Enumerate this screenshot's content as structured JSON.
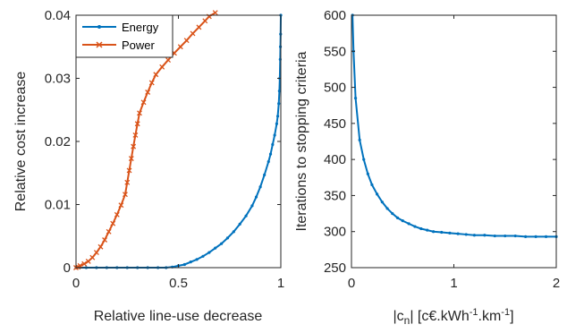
{
  "chart_data": [
    {
      "type": "line",
      "xlabel": "Relative line-use decrease",
      "ylabel": "Relative cost increase",
      "xlim": [
        0,
        1
      ],
      "ylim": [
        0,
        0.04
      ],
      "xticks": [
        0,
        0.5,
        1
      ],
      "xtick_labels": [
        "0",
        "0.5",
        "1"
      ],
      "yticks": [
        0,
        0.01,
        0.02,
        0.03,
        0.04
      ],
      "ytick_labels": [
        "0",
        "0.01",
        "0.02",
        "0.03",
        "0.04"
      ],
      "grid": false,
      "legend": "top-left",
      "series": [
        {
          "name": "Energy",
          "color": "#0072BD",
          "marker": "dot",
          "points": [
            [
              0,
              0
            ],
            [
              0.05,
              0
            ],
            [
              0.1,
              0
            ],
            [
              0.15,
              0
            ],
            [
              0.2,
              0
            ],
            [
              0.25,
              0
            ],
            [
              0.3,
              0
            ],
            [
              0.35,
              0
            ],
            [
              0.4,
              0
            ],
            [
              0.44,
              0
            ],
            [
              0.47,
              0.0001
            ],
            [
              0.5,
              0.0003
            ],
            [
              0.53,
              0.0005
            ],
            [
              0.56,
              0.0009
            ],
            [
              0.59,
              0.0013
            ],
            [
              0.62,
              0.0018
            ],
            [
              0.65,
              0.0024
            ],
            [
              0.68,
              0.0031
            ],
            [
              0.71,
              0.0038
            ],
            [
              0.74,
              0.0047
            ],
            [
              0.77,
              0.0057
            ],
            [
              0.8,
              0.0069
            ],
            [
              0.83,
              0.0082
            ],
            [
              0.86,
              0.0098
            ],
            [
              0.88,
              0.0112
            ],
            [
              0.9,
              0.0128
            ],
            [
              0.92,
              0.0147
            ],
            [
              0.94,
              0.0168
            ],
            [
              0.95,
              0.018
            ],
            [
              0.96,
              0.0195
            ],
            [
              0.97,
              0.021
            ],
            [
              0.98,
              0.0228
            ],
            [
              0.985,
              0.024
            ],
            [
              0.99,
              0.026
            ],
            [
              0.993,
              0.028
            ],
            [
              0.995,
              0.03
            ],
            [
              0.997,
              0.033
            ],
            [
              0.998,
              0.035
            ],
            [
              0.999,
              0.037
            ],
            [
              1.0,
              0.04
            ]
          ]
        },
        {
          "name": "Power",
          "color": "#D95319",
          "marker": "x",
          "points": [
            [
              0,
              0
            ],
            [
              0.01,
              0.0001
            ],
            [
              0.02,
              0.0003
            ],
            [
              0.04,
              0.0006
            ],
            [
              0.06,
              0.001
            ],
            [
              0.08,
              0.0016
            ],
            [
              0.1,
              0.0024
            ],
            [
              0.12,
              0.0033
            ],
            [
              0.14,
              0.0044
            ],
            [
              0.16,
              0.0057
            ],
            [
              0.18,
              0.007
            ],
            [
              0.2,
              0.0084
            ],
            [
              0.22,
              0.0099
            ],
            [
              0.24,
              0.0116
            ],
            [
              0.25,
              0.0135
            ],
            [
              0.26,
              0.0154
            ],
            [
              0.27,
              0.0173
            ],
            [
              0.28,
              0.0192
            ],
            [
              0.29,
              0.021
            ],
            [
              0.3,
              0.0228
            ],
            [
              0.31,
              0.0245
            ],
            [
              0.33,
              0.0262
            ],
            [
              0.35,
              0.0278
            ],
            [
              0.37,
              0.0293
            ],
            [
              0.39,
              0.0306
            ],
            [
              0.42,
              0.0318
            ],
            [
              0.45,
              0.0329
            ],
            [
              0.48,
              0.034
            ],
            [
              0.51,
              0.035
            ],
            [
              0.54,
              0.036
            ],
            [
              0.57,
              0.0371
            ],
            [
              0.6,
              0.0381
            ],
            [
              0.63,
              0.0391
            ],
            [
              0.65,
              0.0398
            ],
            [
              0.68,
              0.0404
            ]
          ]
        }
      ]
    },
    {
      "type": "line",
      "xlabel": "|c_n| [c€.kWh^-1.km^-1]",
      "xlabel_parts": [
        "|c",
        "n",
        "| [c€.kWh",
        "-1",
        ".km",
        "-1",
        "]"
      ],
      "ylabel": "Iterations to stopping criteria",
      "xlim": [
        0,
        2
      ],
      "ylim": [
        250,
        600
      ],
      "xticks": [
        0,
        1,
        2
      ],
      "xtick_labels": [
        "0",
        "1",
        "2"
      ],
      "yticks": [
        250,
        300,
        350,
        400,
        450,
        500,
        550,
        600
      ],
      "ytick_labels": [
        "250",
        "300",
        "350",
        "400",
        "450",
        "500",
        "550",
        "600"
      ],
      "grid": false,
      "series": [
        {
          "color": "#0072BD",
          "marker": "dot",
          "points": [
            [
              0.01,
              600
            ],
            [
              0.02,
              550
            ],
            [
              0.04,
              485
            ],
            [
              0.08,
              427
            ],
            [
              0.12,
              400
            ],
            [
              0.16,
              380
            ],
            [
              0.2,
              365
            ],
            [
              0.25,
              352
            ],
            [
              0.3,
              341
            ],
            [
              0.35,
              332
            ],
            [
              0.4,
              325
            ],
            [
              0.45,
              319
            ],
            [
              0.5,
              315
            ],
            [
              0.56,
              311
            ],
            [
              0.62,
              307
            ],
            [
              0.68,
              304
            ],
            [
              0.74,
              302
            ],
            [
              0.8,
              300
            ],
            [
              0.88,
              299
            ],
            [
              0.96,
              298
            ],
            [
              1.04,
              297
            ],
            [
              1.12,
              296
            ],
            [
              1.2,
              295
            ],
            [
              1.3,
              295
            ],
            [
              1.4,
              294
            ],
            [
              1.5,
              294
            ],
            [
              1.6,
              294
            ],
            [
              1.7,
              293
            ],
            [
              1.8,
              293
            ],
            [
              1.9,
              293
            ],
            [
              2.0,
              293
            ]
          ]
        }
      ]
    }
  ]
}
